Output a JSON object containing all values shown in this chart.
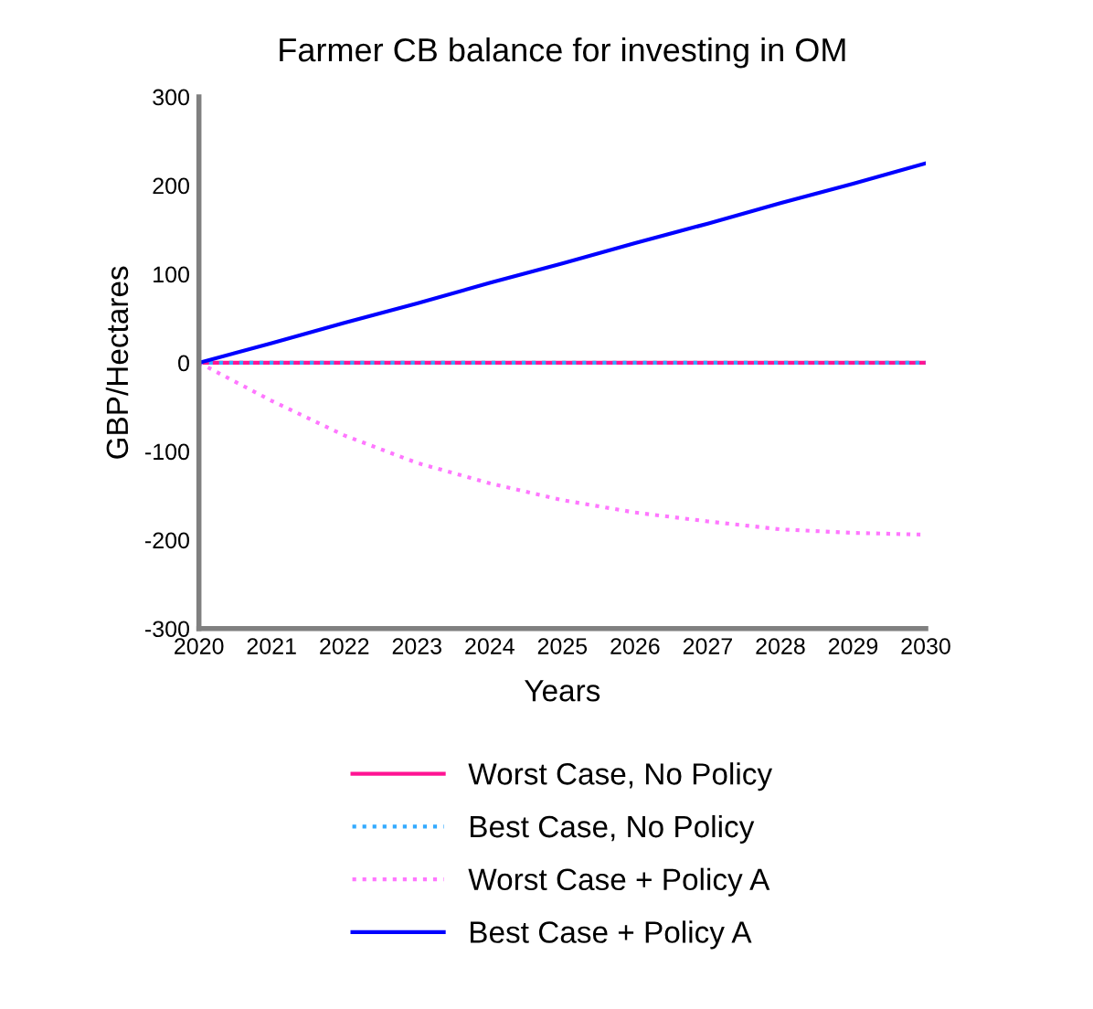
{
  "chart_data": {
    "type": "line",
    "title": "Farmer CB balance for investing in OM",
    "xlabel": "Years",
    "ylabel": "GBP/Hectares",
    "x": [
      2020,
      2021,
      2022,
      2023,
      2024,
      2025,
      2026,
      2027,
      2028,
      2029,
      2030
    ],
    "xlim": [
      2020,
      2030
    ],
    "xticks": [
      2020,
      2021,
      2022,
      2023,
      2024,
      2025,
      2026,
      2027,
      2028,
      2029,
      2030
    ],
    "ylim": [
      -300,
      300
    ],
    "yticks": [
      -300,
      -200,
      -100,
      0,
      100,
      200,
      300
    ],
    "grid": false,
    "legend": "bottom",
    "marker": "none",
    "series": [
      {
        "name": "Worst Case, No Policy",
        "color": "#ff1493",
        "line_style": "solid",
        "values": [
          0,
          0,
          0,
          0,
          0,
          0,
          0,
          0,
          0,
          0,
          0
        ]
      },
      {
        "name": "Best Case, No Policy",
        "color": "#33aaff",
        "line_style": "dotted",
        "values": [
          0,
          0,
          0,
          0,
          0,
          0,
          0,
          0,
          0,
          0,
          0
        ]
      },
      {
        "name": "Worst Case + Policy A",
        "color": "#ff77ff",
        "line_style": "dotted",
        "values": [
          0,
          -43,
          -82,
          -113,
          -136,
          -155,
          -169,
          -179,
          -188,
          -192,
          -194
        ]
      },
      {
        "name": "Best Case + Policy A",
        "color": "#0000ff",
        "line_style": "solid",
        "values": [
          0,
          22,
          45,
          67,
          90,
          112,
          135,
          157,
          180,
          202,
          225
        ]
      }
    ]
  }
}
